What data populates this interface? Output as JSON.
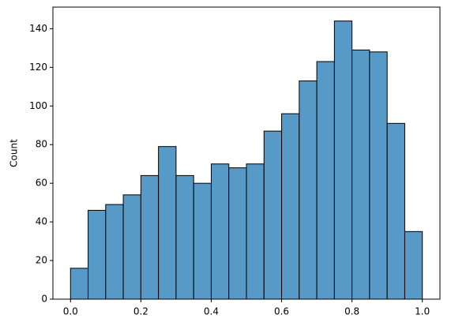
{
  "chart_data": {
    "type": "histogram",
    "ylabel": "Count",
    "bins": [
      0,
      0.05,
      0.1,
      0.15,
      0.2,
      0.25,
      0.3,
      0.35,
      0.4,
      0.45,
      0.5,
      0.55,
      0.6,
      0.65,
      0.7,
      0.75,
      0.8,
      0.85,
      0.9,
      0.95,
      1
    ],
    "values": [
      16,
      46,
      49,
      54,
      64,
      79,
      64,
      60,
      70,
      68,
      70,
      87,
      96,
      113,
      123,
      144,
      129,
      128,
      91,
      35
    ],
    "color": "#5799c7",
    "xlim": [
      -0.05,
      1.05
    ],
    "xticks": [
      {
        "value": 0,
        "label": "0.0"
      },
      {
        "value": 0.2,
        "label": "0.2"
      },
      {
        "value": 0.4,
        "label": "0.4"
      },
      {
        "value": 0.6,
        "label": "0.6"
      },
      {
        "value": 0.8,
        "label": "0.8"
      },
      {
        "value": 1,
        "label": "1.0"
      }
    ],
    "ylim": [
      0,
      151.2
    ],
    "yticks": [
      0,
      20,
      40,
      60,
      80,
      100,
      120,
      140
    ]
  }
}
